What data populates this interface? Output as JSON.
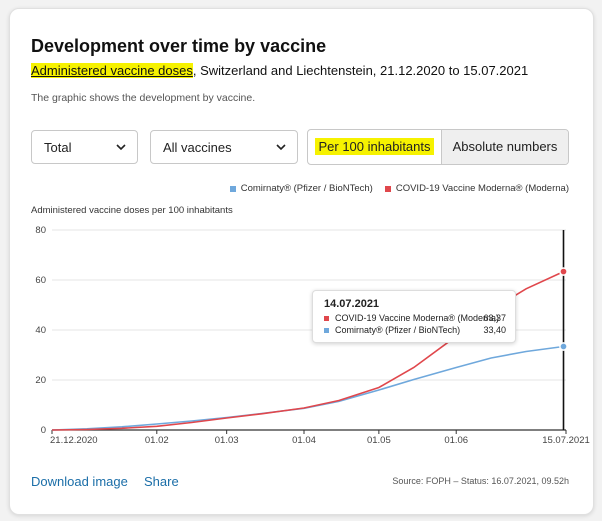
{
  "header": {
    "title": "Development over time by vaccine",
    "subtitle_highlight": "Administered vaccine doses",
    "subtitle_rest": ", Switzerland and Liechtenstein, 21.12.2020 to 15.07.2021",
    "description": "The graphic shows the development by vaccine."
  },
  "controls": {
    "scope_select": "Total",
    "vaccine_select": "All vaccines",
    "toggle_per100": "Per 100 inhabitants",
    "toggle_absolute": "Absolute numbers",
    "highlight_color": "#f6f200"
  },
  "legend": [
    {
      "name": "Comirnaty® (Pfizer / BioNTech)",
      "color": "#6fa8dc"
    },
    {
      "name": "COVID-19 Vaccine Moderna® (Moderna)",
      "color": "#e0474c"
    }
  ],
  "tooltip": {
    "date": "14.07.2021",
    "rows": [
      {
        "name": "COVID-19 Vaccine Moderna® (Moderna)",
        "value": "63,37",
        "color": "#e0474c"
      },
      {
        "name": "Comirnaty® (Pfizer / BioNTech)",
        "value": "33,40",
        "color": "#6fa8dc"
      }
    ]
  },
  "footer": {
    "download": "Download image",
    "share": "Share",
    "source": "Source: FOPH – Status: 16.07.2021, 09.52h"
  },
  "chart_data": {
    "type": "line",
    "ylabel": "Administered vaccine doses per 100 inhabitants",
    "ylim": [
      0,
      80
    ],
    "yticks": [
      0,
      20,
      40,
      60,
      80
    ],
    "xlim": [
      0,
      206
    ],
    "xticks": [
      {
        "label": "21.12.2020",
        "day": 0
      },
      {
        "label": "01.02",
        "day": 42
      },
      {
        "label": "01.03",
        "day": 70
      },
      {
        "label": "01.04",
        "day": 101
      },
      {
        "label": "01.05",
        "day": 131
      },
      {
        "label": "01.06",
        "day": 162
      },
      {
        "label": "15.07.2021",
        "day": 206
      }
    ],
    "grid": true,
    "series": [
      {
        "name": "Comirnaty® (Pfizer / BioNTech)",
        "color": "#6fa8dc",
        "points": [
          [
            0,
            0
          ],
          [
            14,
            0.5
          ],
          [
            28,
            1.3
          ],
          [
            42,
            2.4
          ],
          [
            56,
            3.6
          ],
          [
            70,
            5.0
          ],
          [
            84,
            6.6
          ],
          [
            101,
            8.7
          ],
          [
            115,
            11.5
          ],
          [
            131,
            16.0
          ],
          [
            145,
            20.2
          ],
          [
            162,
            25.0
          ],
          [
            176,
            28.8
          ],
          [
            190,
            31.4
          ],
          [
            205,
            33.4
          ]
        ]
      },
      {
        "name": "COVID-19 Vaccine Moderna® (Moderna)",
        "color": "#e0474c",
        "points": [
          [
            0,
            0
          ],
          [
            14,
            0.2
          ],
          [
            28,
            0.7
          ],
          [
            42,
            1.5
          ],
          [
            56,
            3.0
          ],
          [
            70,
            4.8
          ],
          [
            84,
            6.5
          ],
          [
            101,
            8.8
          ],
          [
            115,
            11.8
          ],
          [
            131,
            17.0
          ],
          [
            145,
            25.0
          ],
          [
            162,
            37.5
          ],
          [
            176,
            48.0
          ],
          [
            190,
            56.5
          ],
          [
            205,
            63.37
          ]
        ]
      }
    ],
    "hover_day": 205
  }
}
